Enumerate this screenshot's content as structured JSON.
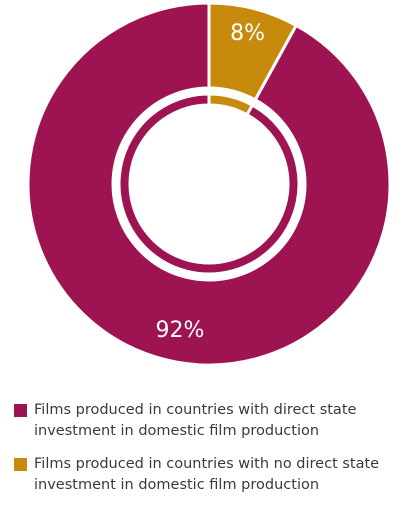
{
  "chart_data": {
    "type": "pie",
    "variant": "donut",
    "title": "",
    "categories": [
      "Films produced in countries with direct state investment in domestic film production",
      "Films produced in countries with no direct state investment in domestic film production"
    ],
    "values": [
      92,
      8
    ],
    "value_labels": [
      "92%",
      "8%"
    ],
    "colors": [
      "#9e1452",
      "#c78a0d"
    ],
    "inner_ring": true,
    "legend_position": "bottom"
  },
  "legend": {
    "items": [
      {
        "label": "Films produced in countries with direct state investment in domestic film production",
        "color": "#9e1452"
      },
      {
        "label": "Films produced in countries with no direct state investment in domestic film production",
        "color": "#c78a0d"
      }
    ]
  }
}
